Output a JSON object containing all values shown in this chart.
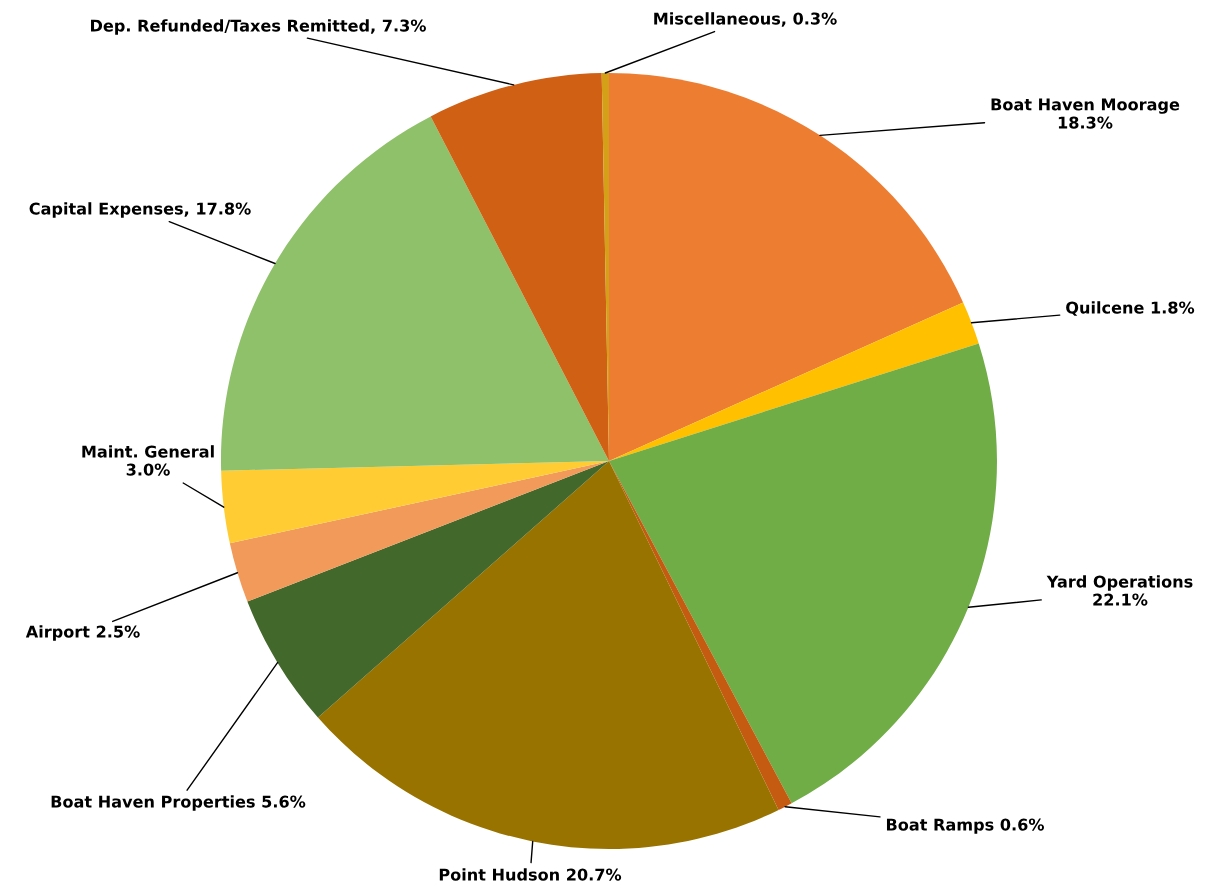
{
  "chart_data": {
    "type": "pie",
    "categories": [
      "Boat Haven Moorage",
      "Quilcene",
      "Yard Operations",
      "Boat Ramps",
      "Point Hudson",
      "Boat Haven Properties",
      "Airport",
      "Maint. General",
      "Capital Expenses",
      "Dep. Refunded/Taxes Remitted",
      "Miscellaneous"
    ],
    "values": [
      18.3,
      1.8,
      22.1,
      0.6,
      20.7,
      5.6,
      2.5,
      3.0,
      17.8,
      7.3,
      0.3
    ],
    "value_labels": [
      "18.3%",
      "1.8%",
      "22.1%",
      "0.6%",
      "20.7%",
      "5.6%",
      "2.5%",
      "3.0%",
      "17.8%",
      "7.3%",
      "0.3%"
    ],
    "colors": [
      "#ed7d31",
      "#ffc000",
      "#70ad47",
      "#c55a11",
      "#997300",
      "#43682b",
      "#f19a5a",
      "#ffcd33",
      "#8fc16a",
      "#d06014",
      "#d4a017"
    ],
    "legend": false
  }
}
